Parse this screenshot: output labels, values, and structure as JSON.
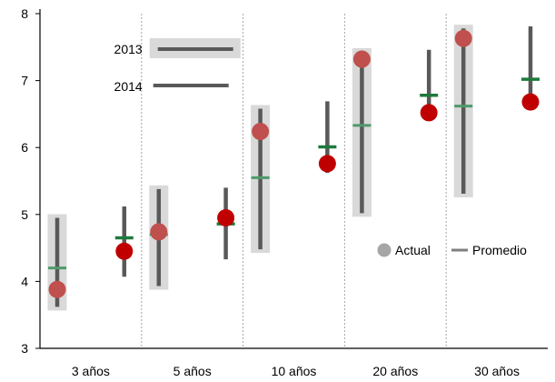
{
  "chart_data": {
    "type": "range",
    "categories": [
      "3 años",
      "5 años",
      "10 años",
      "20 años",
      "30 años"
    ],
    "ylim": [
      3,
      8
    ],
    "yticks": [
      3,
      4,
      5,
      6,
      7,
      8
    ],
    "grid": false,
    "series": [
      {
        "name": "2013",
        "range_high": [
          4.95,
          5.38,
          6.58,
          7.43,
          7.78
        ],
        "range_low": [
          3.62,
          3.93,
          4.48,
          5.02,
          5.31
        ],
        "actual": [
          3.88,
          4.74,
          6.24,
          7.32,
          7.63
        ],
        "average": [
          4.2,
          4.7,
          5.55,
          6.33,
          6.62
        ]
      },
      {
        "name": "2014",
        "range_high": [
          5.12,
          5.4,
          6.69,
          7.46,
          7.81
        ],
        "range_low": [
          4.07,
          4.33,
          5.62,
          6.52,
          6.68
        ],
        "actual": [
          4.45,
          4.95,
          5.76,
          6.52,
          6.68
        ],
        "average": [
          4.65,
          4.86,
          6.01,
          6.78,
          7.02
        ]
      }
    ],
    "legend": {
      "actual_label": "Actual",
      "average_label": "Promedio",
      "placement": "right"
    },
    "colors": {
      "range_2013_box": "#d9d9d9",
      "range_line": "#595959",
      "actual_2013": "#c0504d",
      "actual_2014": "#c00000",
      "average_2013": "#4e9a6a",
      "average_2014": "#1e7a3c",
      "legend_marker": "#a6a6a6",
      "legend_line": "#7f7f7f",
      "divider": "#a6a6a6"
    }
  }
}
